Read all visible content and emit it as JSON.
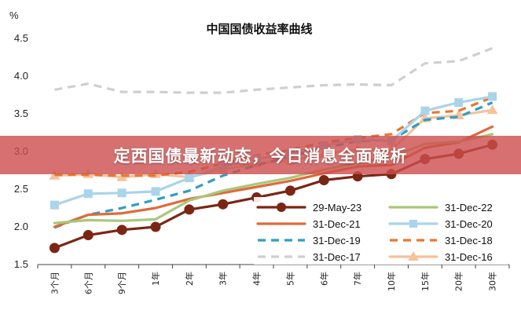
{
  "banner": {
    "headline": "定西国债最新动态，今日消息全面解析",
    "background": "#cd4e4e"
  },
  "chart_data": {
    "type": "line",
    "title": "中国国债收益率曲线",
    "ylabel": "%",
    "xlabel": "",
    "ylim": [
      1.5,
      4.5
    ],
    "yticks": [
      "1.5",
      "2.0",
      "2.5",
      "3.0",
      "3.5",
      "4.0",
      "4.5"
    ],
    "categories": [
      "3个月",
      "6个月",
      "9个月",
      "1年",
      "2年",
      "3年",
      "4年",
      "5年",
      "6年",
      "7年",
      "10年",
      "15年",
      "20年",
      "30年"
    ],
    "grid": false,
    "legend_position": "bottom-right",
    "series": [
      {
        "name": "29-May-23",
        "color": "#7b2515",
        "style": "solid",
        "marker": "circle",
        "values": [
          1.72,
          1.89,
          1.96,
          2.0,
          2.23,
          2.3,
          2.39,
          2.48,
          2.62,
          2.67,
          2.7,
          2.9,
          2.97,
          3.09
        ]
      },
      {
        "name": "31-Dec-22",
        "color": "#a9c77a",
        "style": "solid",
        "marker": "none",
        "values": [
          2.05,
          2.09,
          2.08,
          2.1,
          2.35,
          2.48,
          2.57,
          2.65,
          2.76,
          2.85,
          2.93,
          3.1,
          3.13,
          3.23
        ]
      },
      {
        "name": "31-Dec-21",
        "color": "#e06a3b",
        "style": "solid",
        "marker": "none",
        "values": [
          2.0,
          2.16,
          2.18,
          2.25,
          2.37,
          2.45,
          2.53,
          2.61,
          2.71,
          2.8,
          2.82,
          3.05,
          3.12,
          3.33
        ]
      },
      {
        "name": "31-Dec-20",
        "color": "#a9d4ea",
        "style": "solid",
        "marker": "square",
        "values": [
          2.29,
          2.44,
          2.45,
          2.47,
          2.65,
          2.8,
          2.9,
          2.97,
          3.08,
          3.16,
          3.14,
          3.54,
          3.65,
          3.73
        ]
      },
      {
        "name": "31-Dec-19",
        "color": "#2f9ec4",
        "style": "dashed",
        "marker": "none",
        "values": [
          1.99,
          2.16,
          2.25,
          2.36,
          2.48,
          2.68,
          2.82,
          2.93,
          3.05,
          3.14,
          3.15,
          3.42,
          3.46,
          3.65
        ]
      },
      {
        "name": "31-Dec-18",
        "color": "#e8792d",
        "style": "dashed",
        "marker": "none",
        "values": [
          2.69,
          2.69,
          2.68,
          2.68,
          2.73,
          2.84,
          2.95,
          3.02,
          3.12,
          3.18,
          3.23,
          3.51,
          3.54,
          3.72
        ]
      },
      {
        "name": "31-Dec-17",
        "color": "#cfcfcf",
        "style": "dashed",
        "marker": "none",
        "values": [
          3.82,
          3.9,
          3.79,
          3.79,
          3.78,
          3.78,
          3.82,
          3.85,
          3.88,
          3.89,
          3.88,
          4.17,
          4.2,
          4.37
        ]
      },
      {
        "name": "31-Dec-16",
        "color": "#f5c29b",
        "style": "solid",
        "marker": "triangle",
        "values": [
          2.68,
          2.7,
          2.66,
          2.7,
          2.66,
          2.76,
          2.84,
          2.88,
          2.96,
          3.03,
          3.02,
          3.44,
          3.48,
          3.55
        ]
      }
    ]
  }
}
